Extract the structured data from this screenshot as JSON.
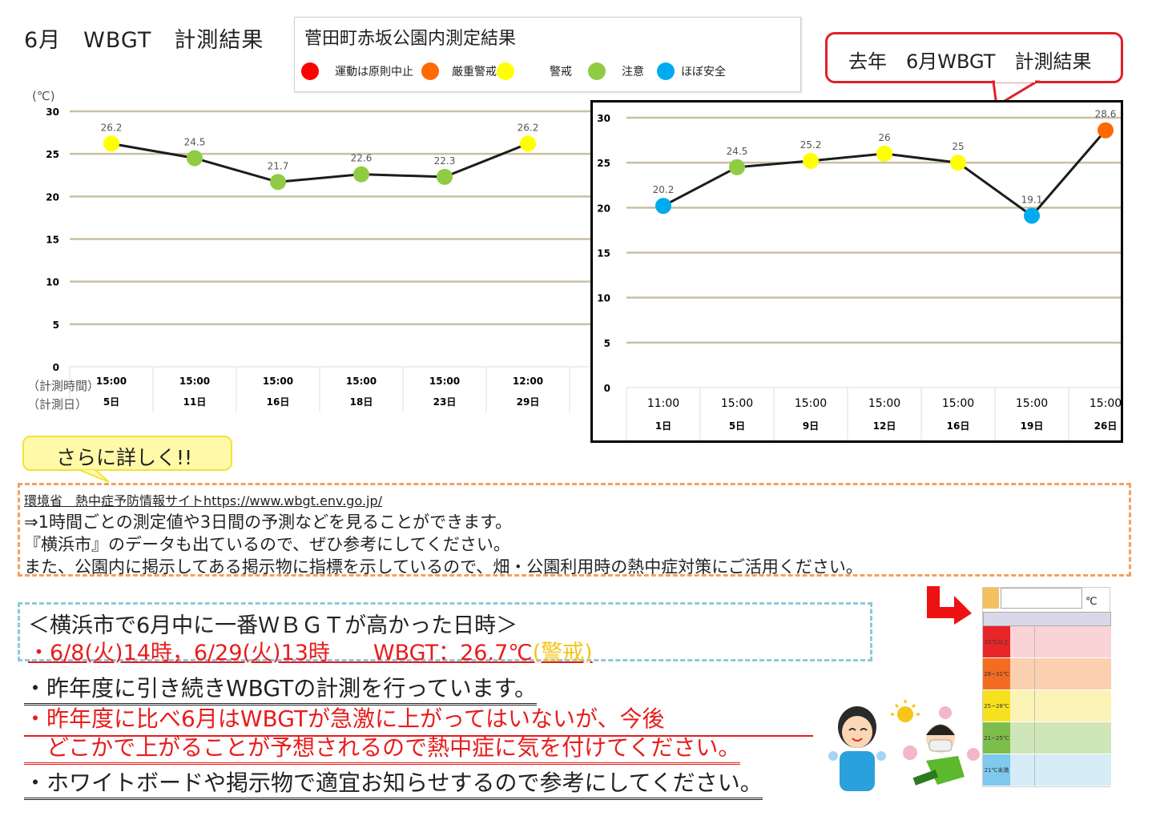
{
  "header": {
    "title": "6月　WBGT　計測結果",
    "legend_title": "菅田町赤坂公園内測定結果",
    "legend": [
      {
        "label": "運動は原則中止",
        "color": "#ff0000"
      },
      {
        "label": "厳重警戒",
        "color": "#ff6a00"
      },
      {
        "label": "警戒",
        "color": "#ffff00"
      },
      {
        "label": "注意",
        "color": "#8fcc44"
      },
      {
        "label": "ほぼ安全",
        "color": "#00aaee"
      }
    ]
  },
  "last_year_callout": "去年　6月WBGT　計測結果",
  "chart_data": [
    {
      "type": "line",
      "title": "菅田町赤坂公園内測定結果 (今年 6月)",
      "ylabel": "(℃)",
      "ylim": [
        0,
        30
      ],
      "yticks": [
        0,
        5,
        10,
        15,
        20,
        25,
        30
      ],
      "row_labels": [
        "（計測時間）",
        "（計測日）"
      ],
      "categories": [
        "5日",
        "11日",
        "16日",
        "18日",
        "23日",
        "29日"
      ],
      "times": [
        "15:00",
        "15:00",
        "15:00",
        "15:00",
        "15:00",
        "12:00"
      ],
      "values": [
        26.2,
        24.5,
        21.7,
        22.6,
        22.3,
        26.2
      ],
      "point_colors": [
        "#ffff00",
        "#8fcc44",
        "#8fcc44",
        "#8fcc44",
        "#8fcc44",
        "#ffff00"
      ],
      "grid": true
    },
    {
      "type": "line",
      "title": "去年 6月WBGT 計測結果",
      "ylim": [
        0,
        30
      ],
      "yticks": [
        0,
        5,
        10,
        15,
        20,
        25,
        30
      ],
      "categories": [
        "1日",
        "5日",
        "9日",
        "12日",
        "16日",
        "19日",
        "26日"
      ],
      "times": [
        "11:00",
        "15:00",
        "15:00",
        "15:00",
        "15:00",
        "15:00",
        "15:00"
      ],
      "values": [
        20.2,
        24.5,
        25.2,
        26,
        25,
        19.1,
        28.6
      ],
      "point_colors": [
        "#00aaee",
        "#8fcc44",
        "#ffff00",
        "#ffff00",
        "#ffff00",
        "#00aaee",
        "#ff6a00"
      ],
      "grid": true
    }
  ],
  "more_info": {
    "bubble": "さらに詳しく!!",
    "link": "環境省　熱中症予防情報サイトhttps://www.wbgt.env.go.jp/",
    "lines": [
      "⇒1時間ごとの測定値や3日間の予測などを見ることができます。",
      "『横浜市』のデータも出ているので、ぜひ参考にしてください。",
      "また、公園内に掲示してある掲示物に指標を示しているので、畑・公園利用時の熱中症対策にご活用ください。"
    ]
  },
  "highest": {
    "title": "＜横浜市で6月中に一番ＷＢＧＴが高かった日時＞",
    "detail": "・6/8(火)14時，6/29(火)13時　　WBGT：26.7℃",
    "level": "(警戒)"
  },
  "notes": [
    "・昨年度に引き続きWBGTの計測を行っています。",
    "・昨年度に比べ6月はWBGTが急激に上がってはいないが、今後",
    "　どこかで上がることが予想されるので熱中症に気を付けてください。",
    "・ホワイトボードや掲示物で適宜お知らせするので参考にしてください。"
  ],
  "wbgt_guide": {
    "unit": "℃",
    "rows": [
      {
        "range": "31℃以上",
        "color": "#e8262a",
        "bg": "#f9d3d6"
      },
      {
        "range": "28~31℃",
        "color": "#f26c22",
        "bg": "#fbd0b0"
      },
      {
        "range": "25~28℃",
        "color": "#f7e11e",
        "bg": "#fbf3b5"
      },
      {
        "range": "21~25℃",
        "color": "#7dbd4b",
        "bg": "#cfe6b8"
      },
      {
        "range": "21℃未満",
        "color": "#7fc8ee",
        "bg": "#d6ecf7"
      }
    ]
  }
}
